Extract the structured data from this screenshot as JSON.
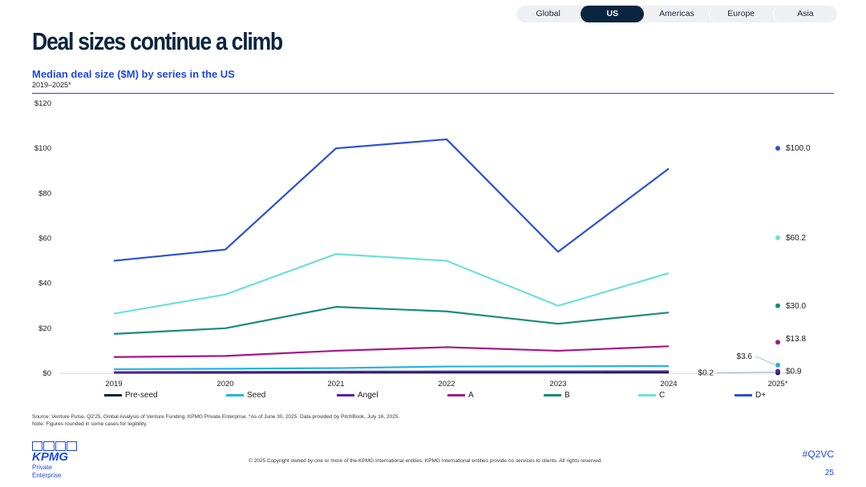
{
  "nav": {
    "tabs": [
      {
        "label": "Global",
        "active": false
      },
      {
        "label": "US",
        "active": true
      },
      {
        "label": "Americas",
        "active": false
      },
      {
        "label": "Europe",
        "active": false
      },
      {
        "label": "Asia",
        "active": false
      }
    ]
  },
  "page": {
    "title": "Deal sizes continue a climb",
    "subtitle": "Median deal size ($M) by series in the US",
    "period": "2019–2025*",
    "source_line1": "Source: Venture Pulse, Q2'25, Global Analysis of Venture Funding, KPMG Private Enterprise. *As of June 30, 2025. Data provided by PitchBook, July 16, 2025.",
    "source_line2": "Note: Figures rounded in some cases for legibility.",
    "copyright": "© 2025 Copyright owned by one or more of the KPMG International entities. KPMG International entities provide no services to clients. All rights reserved.",
    "hashtag": "#Q2VC",
    "page_number": "25",
    "logo_text": "KPMG",
    "logo_sub": "Private Enterprise"
  },
  "chart_data": {
    "type": "line",
    "title": "Median deal size ($M) by series in the US",
    "x": [
      "2019",
      "2020",
      "2021",
      "2022",
      "2023",
      "2024",
      "2025*"
    ],
    "ylim": [
      0,
      120
    ],
    "yticks": [
      0,
      20,
      40,
      60,
      80,
      100,
      120
    ],
    "ytick_labels": [
      "$0",
      "$20",
      "$40",
      "$60",
      "$80",
      "$100",
      "$120"
    ],
    "grid": false,
    "legend_position": "bottom",
    "series": [
      {
        "name": "Pre-seed",
        "color": "#0a1f3c",
        "values": [
          0.2,
          0.2,
          0.3,
          0.3,
          0.3,
          0.3,
          0.2
        ],
        "end_label": "$0.2"
      },
      {
        "name": "Seed",
        "color": "#1fb6e8",
        "values": [
          1.8,
          2.0,
          2.3,
          3.0,
          3.1,
          3.2,
          3.6
        ],
        "end_label": "$3.6"
      },
      {
        "name": "Angel",
        "color": "#5a1fa8",
        "values": [
          0.5,
          0.6,
          0.7,
          0.8,
          0.8,
          0.9,
          0.9
        ],
        "end_label": "$0.9"
      },
      {
        "name": "A",
        "color": "#a3178a",
        "values": [
          7.2,
          7.7,
          10.0,
          11.6,
          10.0,
          12.0,
          13.8
        ],
        "end_label": "$13.8"
      },
      {
        "name": "B",
        "color": "#1a8a7e",
        "values": [
          17.5,
          20.0,
          29.5,
          27.5,
          22.0,
          27.0,
          30.0
        ],
        "end_label": "$30.0"
      },
      {
        "name": "C",
        "color": "#6de0d8",
        "values": [
          26.5,
          35.0,
          53.0,
          50.0,
          30.0,
          44.5,
          60.2
        ],
        "end_label": "$60.2"
      },
      {
        "name": "D+",
        "color": "#2a4fd8",
        "values": [
          50.0,
          55.0,
          100.0,
          104.0,
          54.0,
          91.0,
          100.0
        ],
        "end_label": "$100.0"
      }
    ]
  }
}
